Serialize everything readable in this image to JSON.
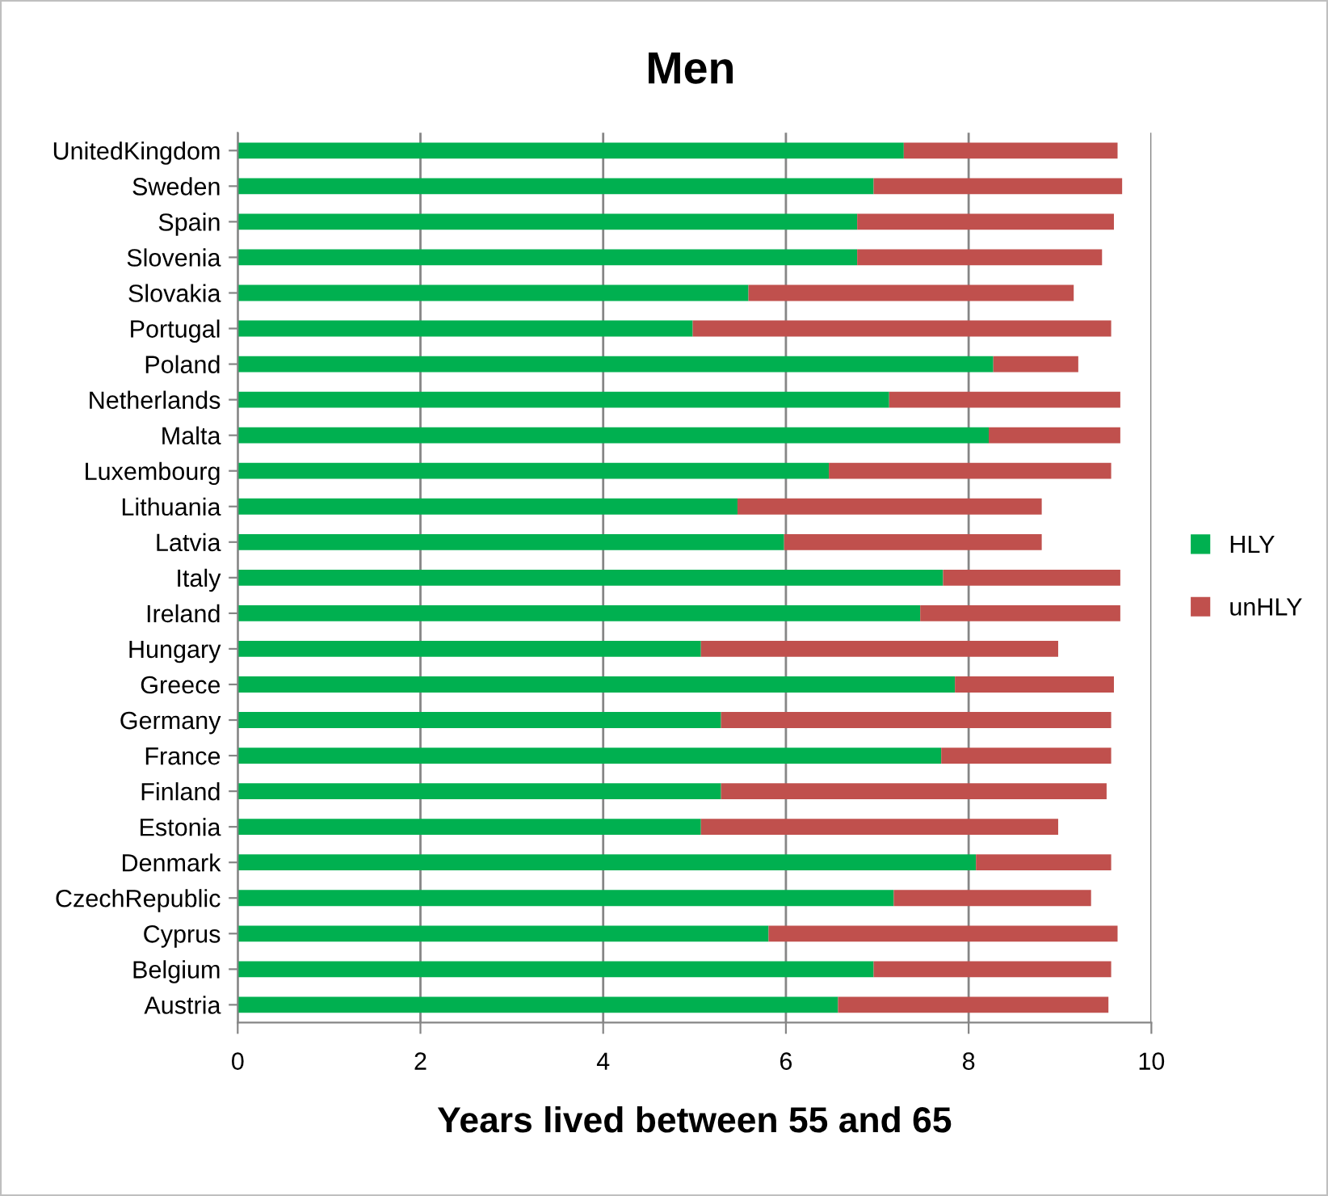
{
  "chart_data": {
    "type": "bar",
    "orientation": "horizontal",
    "stacked": true,
    "title": "Men",
    "xlabel": "Years lived between 55 and 65",
    "categories": [
      "UnitedKingdom",
      "Sweden",
      "Spain",
      "Slovenia",
      "Slovakia",
      "Portugal",
      "Poland",
      "Netherlands",
      "Malta",
      "Luxembourg",
      "Lithuania",
      "Latvia",
      "Italy",
      "Ireland",
      "Hungary",
      "Greece",
      "Germany",
      "France",
      "Finland",
      "Estonia",
      "Denmark",
      "CzechRepublic",
      "Cyprus",
      "Belgium",
      "Austria"
    ],
    "series": [
      {
        "name": "HLY",
        "color": "#00b050",
        "values": [
          7.29,
          6.96,
          6.78,
          6.78,
          5.59,
          4.98,
          8.27,
          7.13,
          8.22,
          6.47,
          5.47,
          5.98,
          7.72,
          7.47,
          5.07,
          7.85,
          5.29,
          7.7,
          5.29,
          5.07,
          8.08,
          7.18,
          5.81,
          6.96,
          6.57
        ]
      },
      {
        "name": "unHLY",
        "color": "#c0504d",
        "values": [
          2.34,
          2.72,
          2.81,
          2.68,
          3.56,
          4.58,
          0.93,
          2.53,
          1.44,
          3.09,
          3.33,
          2.82,
          1.94,
          2.19,
          3.91,
          1.74,
          4.27,
          1.86,
          4.22,
          3.91,
          1.48,
          2.16,
          3.82,
          2.6,
          2.96
        ]
      }
    ],
    "xlim": [
      0,
      10
    ],
    "xticks": [
      0,
      2,
      4,
      6,
      8,
      10
    ],
    "grid": "x",
    "legend": "right"
  }
}
